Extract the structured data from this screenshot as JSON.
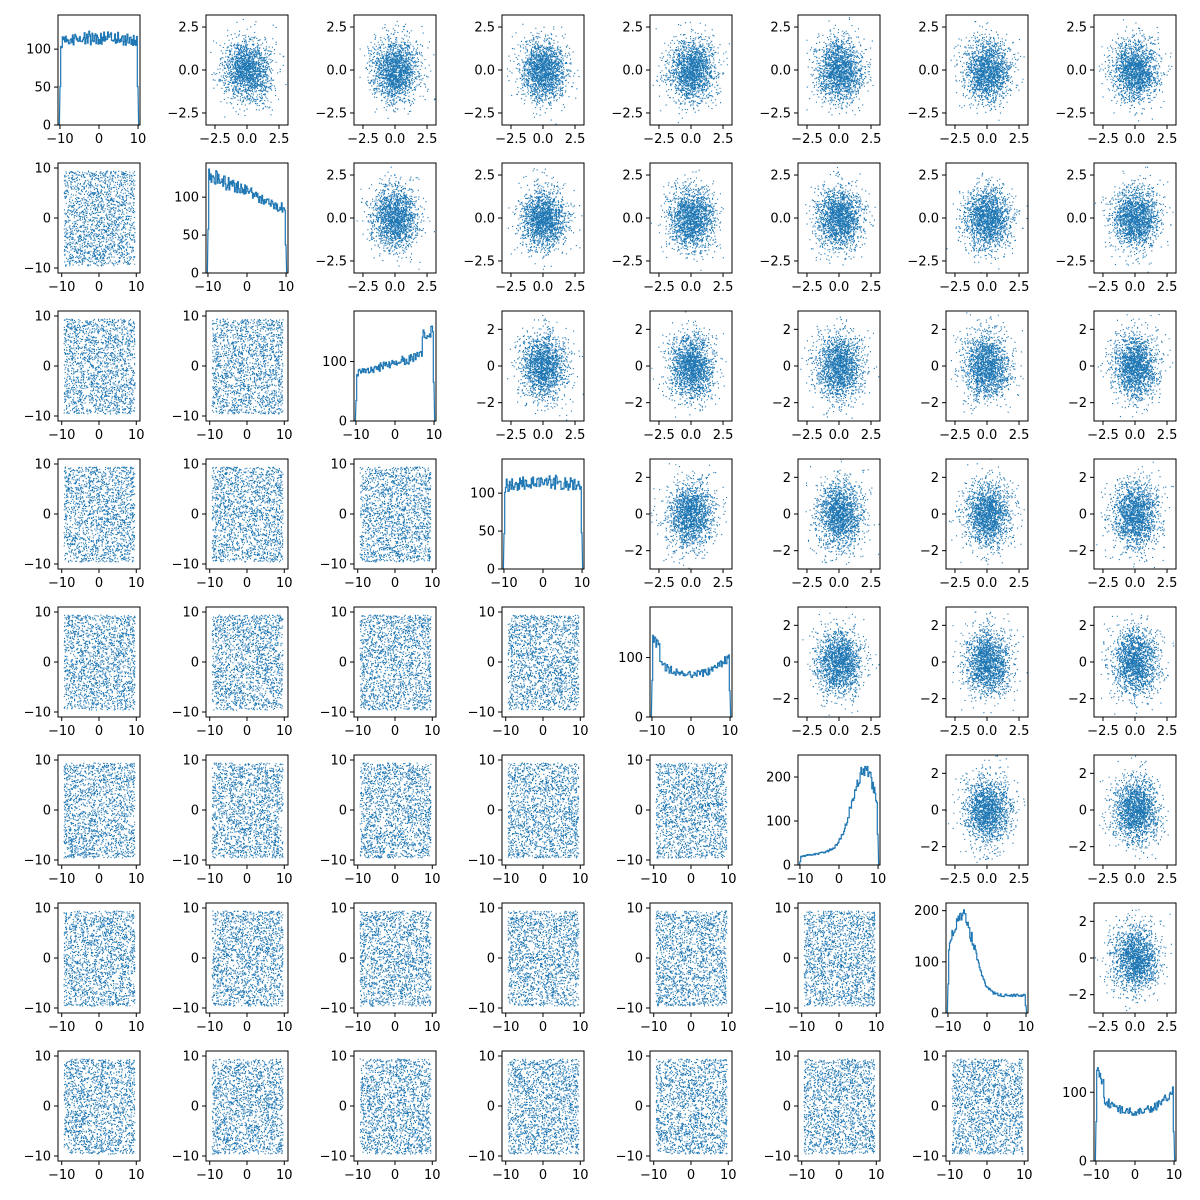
{
  "chart_data": {
    "type": "scatter-matrix",
    "layout": {
      "rows": 8,
      "cols": 8
    },
    "grid": false,
    "legend": "none",
    "point_color": "#1f77b4",
    "line_color": "#1f77b4",
    "axis_color": "#000000",
    "diagonal": {
      "type": "histogram",
      "x_range": [
        -10.5,
        10.5
      ],
      "x_ticks": [
        -10,
        0,
        10
      ],
      "bins": 100,
      "panels": [
        {
          "shape": "flat",
          "ylim": [
            0,
            145
          ],
          "y_ticks": [
            0,
            50,
            100
          ]
        },
        {
          "shape": "decreasing",
          "ylim": [
            0,
            145
          ],
          "y_ticks": [
            0,
            50,
            100
          ]
        },
        {
          "shape": "increasing",
          "ylim": [
            0,
            185
          ],
          "y_ticks": [
            0,
            100
          ]
        },
        {
          "shape": "flat",
          "ylim": [
            0,
            145
          ],
          "y_ticks": [
            0,
            50,
            100
          ]
        },
        {
          "shape": "u-shape",
          "ylim": [
            0,
            185
          ],
          "y_ticks": [
            0,
            100
          ]
        },
        {
          "shape": "peak-right",
          "ylim": [
            0,
            250
          ],
          "y_ticks": [
            0,
            100,
            200
          ]
        },
        {
          "shape": "peak-left",
          "ylim": [
            0,
            215
          ],
          "y_ticks": [
            0,
            100,
            200
          ]
        },
        {
          "shape": "u-shape",
          "ylim": [
            0,
            160
          ],
          "y_ticks": [
            0,
            100
          ]
        }
      ]
    },
    "upper_triangle": {
      "type": "scatter",
      "distribution": "normal",
      "x_range": [
        -3.2,
        3.2
      ],
      "x_ticks": [
        -2.5,
        0.0,
        2.5
      ],
      "x_tick_labels": [
        "−2.5",
        "0.0",
        "2.5"
      ],
      "row_y_axes": [
        {
          "ylim": [
            -3.2,
            3.2
          ],
          "ticks": [
            -2.5,
            0.0,
            2.5
          ],
          "labels": [
            "−2.5",
            "0.0",
            "2.5"
          ]
        },
        {
          "ylim": [
            -3.2,
            3.2
          ],
          "ticks": [
            -2.5,
            0.0,
            2.5
          ],
          "labels": [
            "−2.5",
            "0.0",
            "2.5"
          ]
        },
        {
          "ylim": [
            -3.0,
            3.0
          ],
          "ticks": [
            -2,
            0,
            2
          ],
          "labels": [
            "−2",
            "0",
            "2"
          ]
        },
        {
          "ylim": [
            -3.0,
            3.0
          ],
          "ticks": [
            -2,
            0,
            2
          ],
          "labels": [
            "−2",
            "0",
            "2"
          ]
        },
        {
          "ylim": [
            -3.0,
            3.0
          ],
          "ticks": [
            -2,
            0,
            2
          ],
          "labels": [
            "−2",
            "0",
            "2"
          ]
        },
        {
          "ylim": [
            -3.0,
            3.0
          ],
          "ticks": [
            -2,
            0,
            2
          ],
          "labels": [
            "−2",
            "0",
            "2"
          ]
        },
        {
          "ylim": [
            -3.0,
            3.0
          ],
          "ticks": [
            -2,
            0,
            2
          ],
          "labels": [
            "−2",
            "0",
            "2"
          ]
        }
      ]
    },
    "lower_triangle": {
      "type": "scatter",
      "distribution": "uniform",
      "x_range": [
        -11,
        11
      ],
      "ylim": [
        -11,
        11
      ],
      "x_ticks": [
        -10,
        0,
        10
      ],
      "y_ticks": [
        -10,
        0,
        10
      ],
      "tick_labels": [
        "−10",
        "0",
        "10"
      ]
    }
  }
}
